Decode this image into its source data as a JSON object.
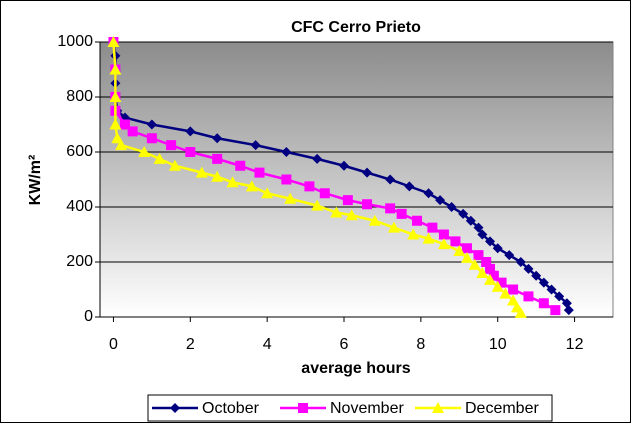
{
  "chart_data": {
    "type": "line",
    "title": "CFC Cerro Prieto",
    "xlabel": "average hours",
    "ylabel": "KW/m²",
    "xlim": [
      -0.35,
      13
    ],
    "xticks": [
      0,
      2,
      4,
      6,
      8,
      10,
      12
    ],
    "ylim": [
      0,
      1000
    ],
    "yticks": [
      0,
      200,
      400,
      600,
      800,
      1000
    ],
    "grid": true,
    "legend": "bottom",
    "series": [
      {
        "name": "October",
        "color": "#000080",
        "marker": "diamond",
        "x": [
          0,
          0.05,
          0.05,
          0.05,
          0.05,
          0.1,
          0.3,
          1,
          2,
          2.7,
          3.7,
          4.5,
          5.3,
          6,
          6.6,
          7.2,
          7.7,
          8.2,
          8.5,
          8.8,
          9.1,
          9.3,
          9.5,
          9.6,
          9.8,
          10,
          10.3,
          10.6,
          10.8,
          11,
          11.2,
          11.4,
          11.6,
          11.8,
          11.85
        ],
        "values": [
          1000,
          950,
          900,
          850,
          800,
          750,
          725,
          700,
          675,
          650,
          625,
          600,
          575,
          550,
          525,
          500,
          475,
          450,
          425,
          400,
          375,
          350,
          325,
          300,
          275,
          250,
          225,
          200,
          175,
          150,
          125,
          100,
          75,
          50,
          25
        ]
      },
      {
        "name": "November",
        "color": "#ff00ff",
        "marker": "square",
        "x": [
          0,
          0.05,
          0.05,
          0.05,
          0.3,
          0.5,
          1,
          1.5,
          2,
          2.7,
          3.3,
          3.8,
          4.5,
          5.1,
          5.5,
          6.1,
          6.6,
          7.2,
          7.5,
          7.9,
          8.3,
          8.6,
          8.9,
          9.2,
          9.5,
          9.7,
          9.8,
          9.9,
          10.1,
          10.4,
          10.8,
          11.2,
          11.5
        ],
        "values": [
          1000,
          900,
          800,
          750,
          700,
          675,
          650,
          625,
          600,
          575,
          550,
          525,
          500,
          475,
          450,
          425,
          410,
          395,
          375,
          350,
          325,
          300,
          275,
          250,
          225,
          200,
          175,
          150,
          125,
          100,
          75,
          50,
          25
        ]
      },
      {
        "name": "December",
        "color": "#ffff00",
        "marker": "triangle",
        "x": [
          0,
          0.05,
          0.05,
          0.05,
          0.1,
          0.2,
          0.8,
          1.2,
          1.6,
          2.3,
          2.7,
          3.1,
          3.6,
          4,
          4.6,
          5.3,
          5.8,
          6.2,
          6.8,
          7.3,
          7.8,
          8.2,
          8.6,
          9,
          9.2,
          9.4,
          9.6,
          9.8,
          10,
          10.2,
          10.4,
          10.5,
          10.6
        ],
        "values": [
          1000,
          900,
          800,
          700,
          650,
          625,
          600,
          575,
          550,
          525,
          510,
          490,
          475,
          450,
          430,
          405,
          380,
          370,
          350,
          325,
          300,
          285,
          265,
          240,
          215,
          190,
          160,
          135,
          110,
          85,
          60,
          35,
          15
        ]
      }
    ]
  }
}
